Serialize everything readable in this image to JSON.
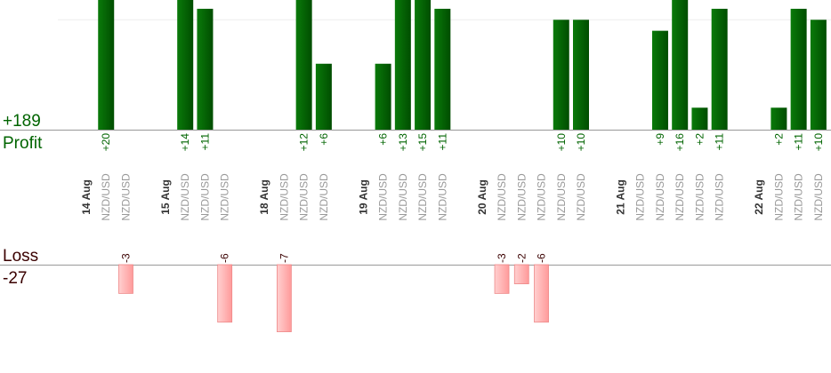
{
  "chart_data": {
    "type": "bar",
    "profit_title": "Profit",
    "profit_total": {
      "value": 189,
      "label": "+189"
    },
    "loss_title": "Loss",
    "loss_total": -27,
    "categories": [
      "14 Aug",
      "NZD/USD",
      "NZD/USD",
      null,
      "15 Aug",
      "NZD/USD",
      "NZD/USD",
      "NZD/USD",
      null,
      "18 Aug",
      "NZD/USD",
      "NZD/USD",
      "NZD/USD",
      null,
      "19 Aug",
      "NZD/USD",
      "NZD/USD",
      "NZD/USD",
      "NZD/USD",
      null,
      "20 Aug",
      "NZD/USD",
      "NZD/USD",
      "NZD/USD",
      "NZD/USD",
      "NZD/USD",
      null,
      "21 Aug",
      "NZD/USD",
      "NZD/USD",
      "NZD/USD",
      "NZD/USD",
      "NZD/USD",
      null,
      "22 Aug",
      "NZD/USD",
      "NZD/USD",
      "NZD/USD"
    ],
    "date_categories": [
      "14 Aug",
      "15 Aug",
      "18 Aug",
      "19 Aug",
      "20 Aug",
      "21 Aug",
      "22 Aug"
    ],
    "ylim": [
      0,
      11.8
    ],
    "yticks": [
      10
    ],
    "grid": true,
    "series": [
      {
        "name": "Profit",
        "color": "#006400",
        "ylim": [
          0,
          11.8
        ],
        "values": [
          null,
          20,
          null,
          null,
          null,
          14,
          11,
          null,
          null,
          null,
          null,
          12,
          6,
          null,
          null,
          6,
          13,
          15,
          11,
          null,
          null,
          null,
          null,
          null,
          10,
          10,
          null,
          null,
          null,
          9,
          16,
          2,
          11,
          null,
          null,
          2,
          11,
          10
        ],
        "value_labels": [
          null,
          "+20",
          null,
          null,
          null,
          "+14",
          "+11",
          null,
          null,
          null,
          null,
          "+12",
          "+6",
          null,
          null,
          "+6",
          "+13",
          "+15",
          "+11",
          null,
          null,
          null,
          null,
          null,
          "+10",
          "+10",
          null,
          null,
          null,
          "+9",
          "+16",
          "+2",
          "+11",
          null,
          null,
          "+2",
          "+11",
          "+10"
        ]
      },
      {
        "name": "Loss",
        "color": "#ffb3b3",
        "ylim": [
          -11.3,
          0
        ],
        "values": [
          null,
          null,
          -3,
          null,
          null,
          null,
          null,
          -6,
          null,
          null,
          -7,
          null,
          null,
          null,
          null,
          null,
          null,
          null,
          null,
          null,
          null,
          -3,
          -2,
          -6,
          null,
          null,
          null,
          null,
          null,
          null,
          null,
          null,
          null,
          null,
          null,
          null,
          null,
          null
        ]
      }
    ]
  }
}
